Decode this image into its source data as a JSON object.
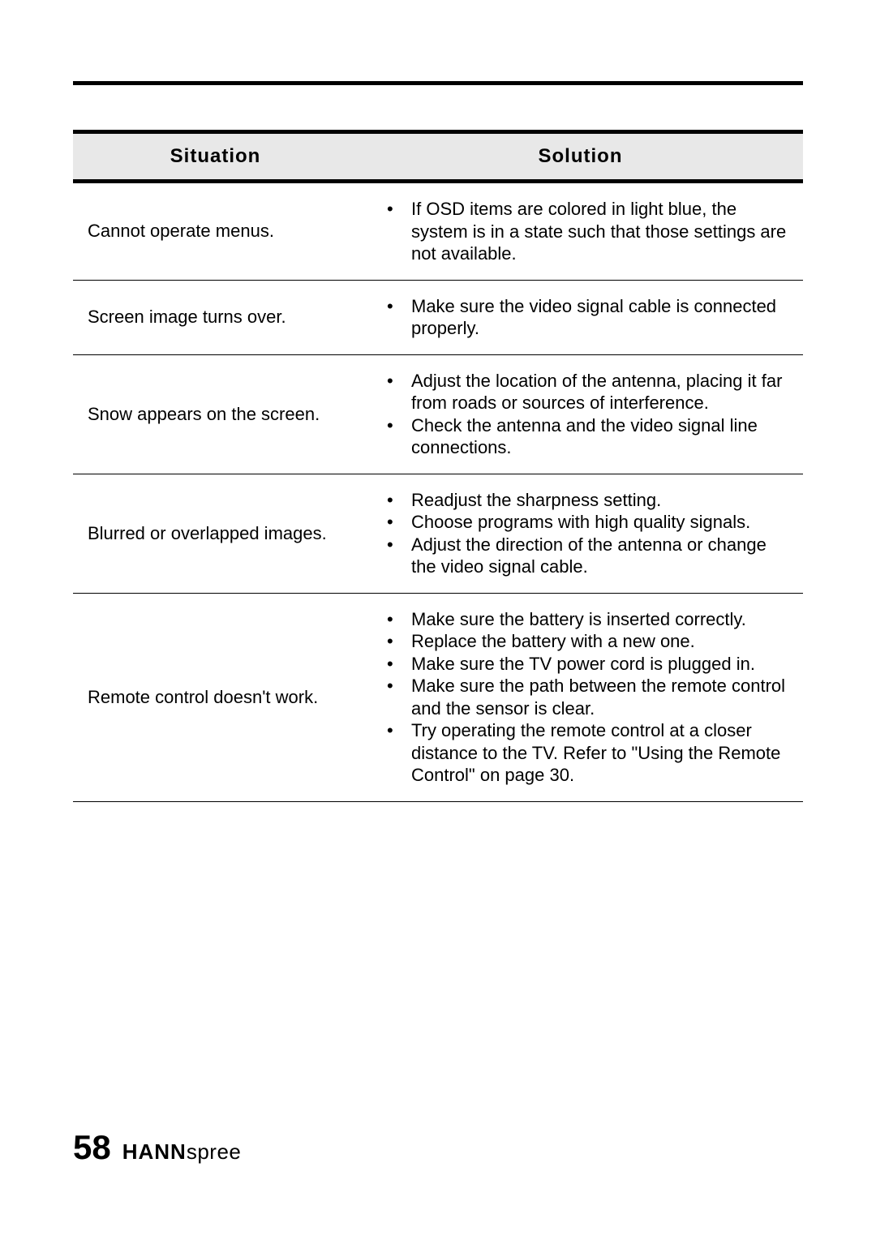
{
  "headers": {
    "situation": "Situation",
    "solution": "Solution"
  },
  "rows": [
    {
      "situation": "Cannot operate menus.",
      "solutions": [
        "If OSD items are colored in light blue, the system is in a state such that those settings are not available."
      ]
    },
    {
      "situation": "Screen image turns over.",
      "solutions": [
        "Make sure the video signal cable is connected properly."
      ]
    },
    {
      "situation": "Snow appears on the screen.",
      "solutions": [
        "Adjust the location of the antenna, placing it far from roads or sources of interference.",
        "Check the antenna and the video signal line connections."
      ]
    },
    {
      "situation": "Blurred or overlapped images.",
      "solutions": [
        "Readjust the sharpness setting.",
        "Choose programs with high quality signals.",
        "Adjust the direction of the antenna or change the video signal cable."
      ]
    },
    {
      "situation": "Remote control doesn't work.",
      "solutions": [
        "Make sure the battery is inserted correctly.",
        "Replace the battery with a new one.",
        "Make sure the TV power cord is plugged in.",
        "Make sure the path between the remote control and the sensor is clear.",
        "Try operating the remote control at a closer distance to the TV. Refer to \"Using the Remote Control\" on page 30."
      ]
    }
  ],
  "footer": {
    "page_number": "58",
    "brand_bold": "HANN",
    "brand_light": "spree"
  }
}
